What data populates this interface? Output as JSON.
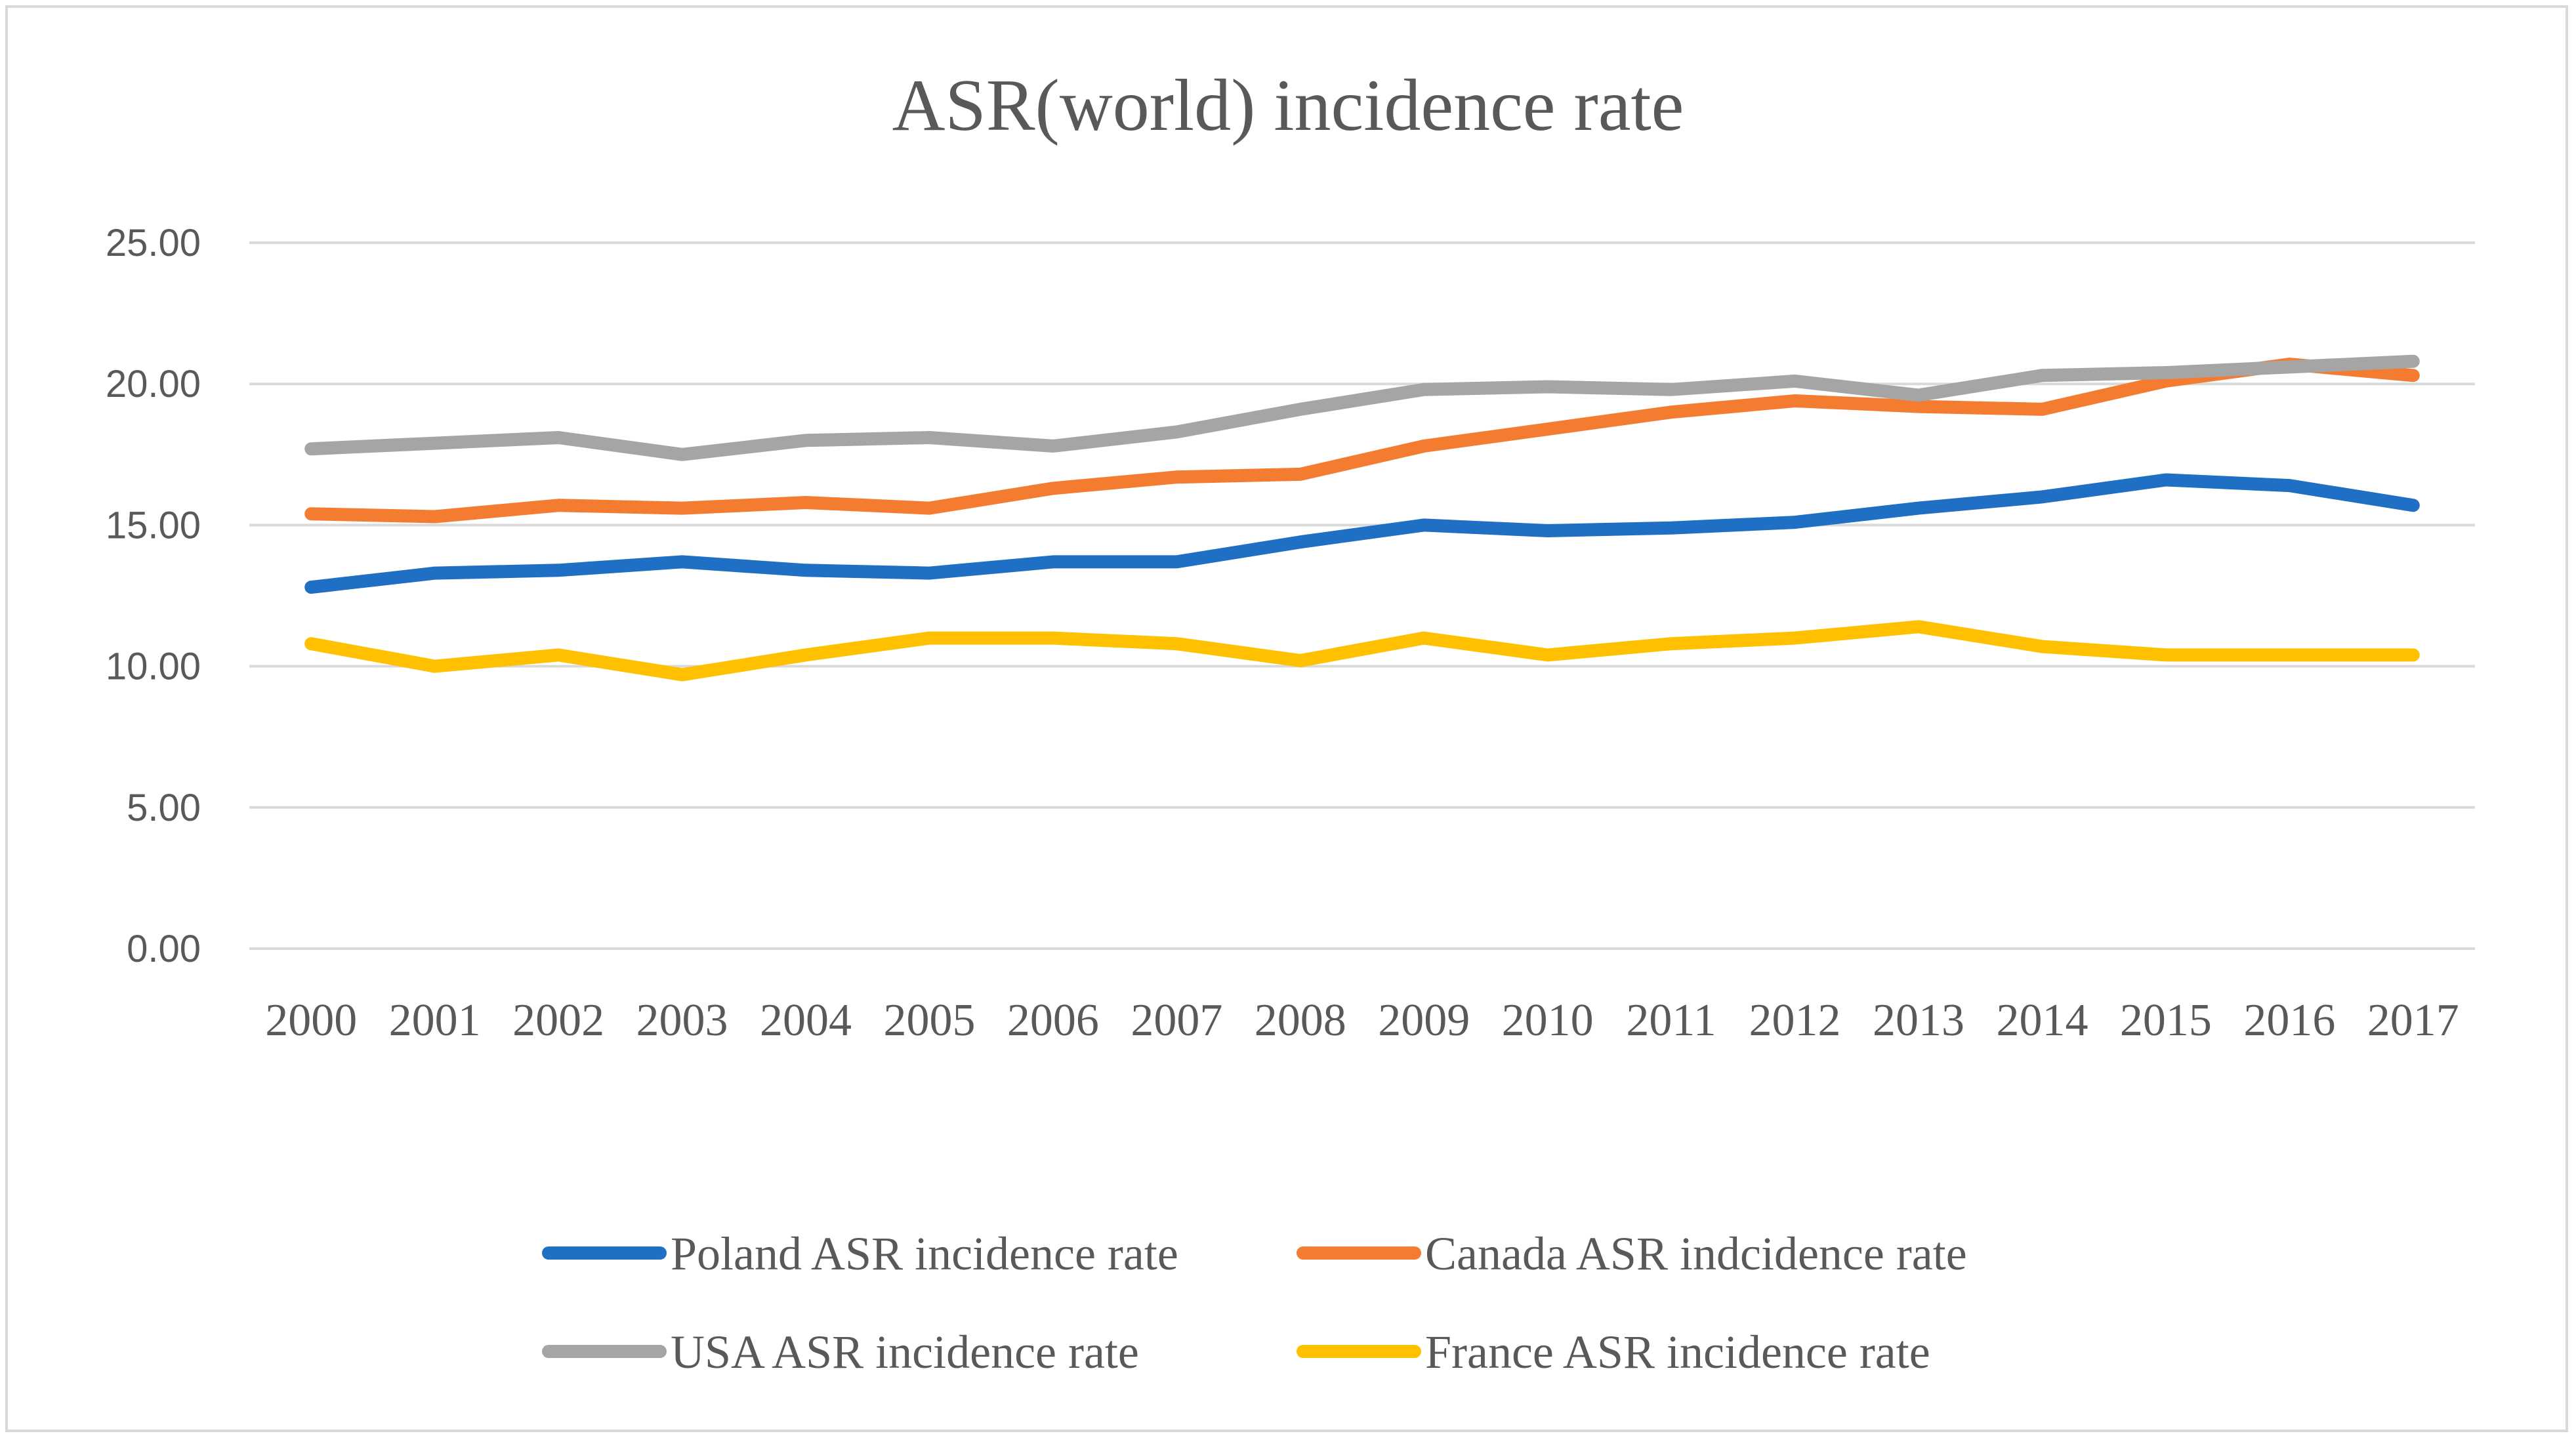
{
  "chart_data": {
    "type": "line",
    "title": "ASR(world) incidence rate",
    "xlabel": "",
    "ylabel": "",
    "ylim": [
      0,
      25
    ],
    "yticks": [
      "0.00",
      "5.00",
      "10.00",
      "15.00",
      "20.00",
      "25.00"
    ],
    "grid": true,
    "legend_position": "bottom",
    "categories": [
      "2000",
      "2001",
      "2002",
      "2003",
      "2004",
      "2005",
      "2006",
      "2007",
      "2008",
      "2009",
      "2010",
      "2011",
      "2012",
      "2013",
      "2014",
      "2015",
      "2016",
      "2017"
    ],
    "series": [
      {
        "name": "Poland ASR incidence rate",
        "color": "#1f6fc5",
        "values": [
          12.8,
          13.3,
          13.4,
          13.7,
          13.4,
          13.3,
          13.7,
          13.7,
          14.4,
          15.0,
          14.8,
          14.9,
          15.1,
          15.6,
          16.0,
          16.6,
          16.4,
          15.7
        ]
      },
      {
        "name": "Canada ASR indcidence rate",
        "color": "#f47c30",
        "values": [
          15.4,
          15.3,
          15.7,
          15.6,
          15.8,
          15.6,
          16.3,
          16.7,
          16.8,
          17.8,
          18.4,
          19.0,
          19.4,
          19.2,
          19.1,
          20.1,
          20.7,
          20.3
        ]
      },
      {
        "name": "USA ASR incidence rate",
        "color": "#a5a5a5",
        "values": [
          17.7,
          17.9,
          18.1,
          17.5,
          18.0,
          18.1,
          17.8,
          18.3,
          19.1,
          19.8,
          19.9,
          19.8,
          20.1,
          19.6,
          20.3,
          20.4,
          20.6,
          20.8
        ]
      },
      {
        "name": "France ASR incidence rate",
        "color": "#ffc000",
        "values": [
          10.8,
          10.0,
          10.4,
          9.7,
          10.4,
          11.0,
          11.0,
          10.8,
          10.2,
          11.0,
          10.4,
          10.8,
          11.0,
          11.4,
          10.7,
          10.4,
          10.4,
          10.4
        ]
      }
    ]
  }
}
